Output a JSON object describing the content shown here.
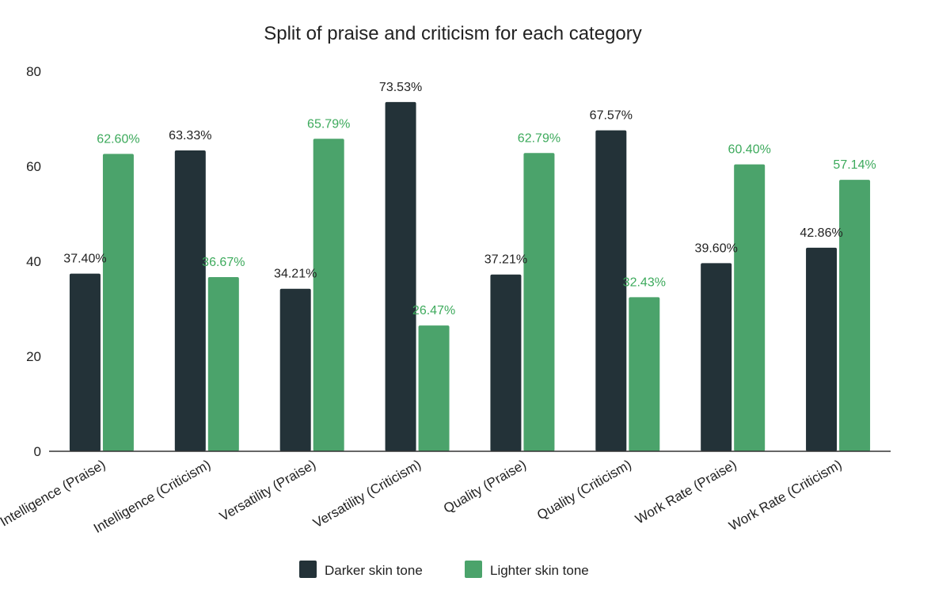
{
  "chart_data": {
    "type": "bar",
    "title": "Split of praise and criticism for each category",
    "xlabel": "",
    "ylabel": "",
    "ylim": [
      0,
      80
    ],
    "yticks": [
      0,
      20,
      40,
      60,
      80
    ],
    "grid": false,
    "legend_position": "bottom",
    "categories": [
      "Intelligence (Praise)",
      "Intelligence (Criticism)",
      "Versatility (Praise)",
      "Versatility (Criticism)",
      "Quality (Praise)",
      "Quality (Criticism)",
      "Work Rate (Praise)",
      "Work Rate (Criticism)"
    ],
    "series": [
      {
        "name": "Darker skin tone",
        "color": "#233238",
        "label_color": "#222222",
        "values": [
          37.4,
          63.33,
          34.21,
          73.53,
          37.21,
          67.57,
          39.6,
          42.86
        ],
        "data_labels": [
          "37.40%",
          "63.33%",
          "34.21%",
          "73.53%",
          "37.21%",
          "67.57%",
          "39.60%",
          "42.86%"
        ]
      },
      {
        "name": "Lighter skin tone",
        "color": "#4ba36b",
        "label_color": "#3daa5c",
        "values": [
          62.6,
          36.67,
          65.79,
          26.47,
          62.79,
          32.43,
          60.4,
          57.14
        ],
        "data_labels": [
          "62.60%",
          "36.67%",
          "65.79%",
          "26.47%",
          "62.79%",
          "32.43%",
          "60.40%",
          "57.14%"
        ]
      }
    ]
  }
}
